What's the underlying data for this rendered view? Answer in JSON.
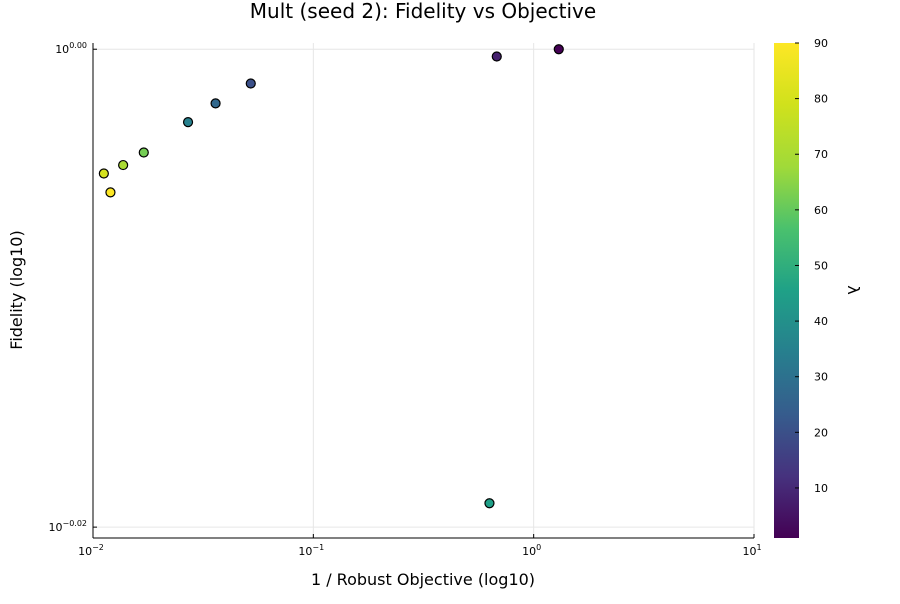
{
  "chart_data": {
    "type": "scatter",
    "title": "Mult (seed 2): Fidelity vs Objective",
    "xlabel": "1 / Robust Objective (log10)",
    "ylabel": "Fidelity (log10)",
    "xscale": "log10",
    "yscale": "log10",
    "xlim": [
      0.01,
      10
    ],
    "ylim": [
      0.954,
      1.0006
    ],
    "x_ticks": [
      {
        "value": 0.01,
        "base": "10",
        "exp": "−2"
      },
      {
        "value": 0.1,
        "base": "10",
        "exp": "−1"
      },
      {
        "value": 1,
        "base": "10",
        "exp": "0"
      },
      {
        "value": 10,
        "base": "10",
        "exp": "1"
      }
    ],
    "y_ticks": [
      {
        "value": 1.0,
        "base": "10",
        "exp": "0.00"
      },
      {
        "value": 0.955,
        "base": "10",
        "exp": "−0.02"
      }
    ],
    "grid": true,
    "colorbar": {
      "label": "λ",
      "min": 1,
      "max": 90,
      "ticks": [
        10,
        20,
        30,
        40,
        50,
        60,
        70,
        80,
        90
      ],
      "colormap": "viridis"
    },
    "points": [
      {
        "x": 1.3,
        "y": 1.0,
        "lambda": 1
      },
      {
        "x": 0.68,
        "y": 0.9993,
        "lambda": 8
      },
      {
        "x": 0.052,
        "y": 0.9967,
        "lambda": 20
      },
      {
        "x": 0.036,
        "y": 0.9948,
        "lambda": 27
      },
      {
        "x": 0.027,
        "y": 0.993,
        "lambda": 35
      },
      {
        "x": 0.017,
        "y": 0.9901,
        "lambda": 62
      },
      {
        "x": 0.0137,
        "y": 0.9889,
        "lambda": 70
      },
      {
        "x": 0.0112,
        "y": 0.9881,
        "lambda": 80
      },
      {
        "x": 0.012,
        "y": 0.9863,
        "lambda": 90
      },
      {
        "x": 0.63,
        "y": 0.9572,
        "lambda": 45
      }
    ]
  }
}
